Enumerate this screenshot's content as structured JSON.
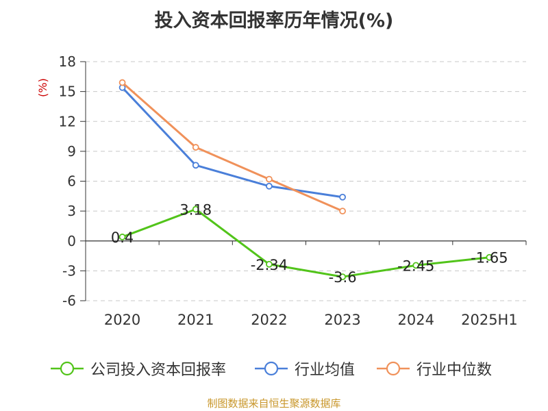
{
  "title": "投入资本回报率历年情况(%)",
  "source": "制图数据来自恒生聚源数据库",
  "chart_data": {
    "type": "line",
    "title": "投入资本回报率历年情况(%)",
    "ylabel": "(%)",
    "xlabel": "",
    "categories": [
      "2020",
      "2021",
      "2022",
      "2023",
      "2024",
      "2025H1"
    ],
    "ylim": [
      -6,
      18
    ],
    "yticks": [
      -6,
      -3,
      0,
      3,
      6,
      9,
      12,
      15,
      18
    ],
    "grid": true,
    "legend_position": "bottom",
    "series": [
      {
        "name": "公司投入资本回报率",
        "color": "#52c41a",
        "labels": true,
        "values": [
          0.4,
          3.18,
          -2.34,
          -3.6,
          -2.45,
          -1.65
        ]
      },
      {
        "name": "行业均值",
        "color": "#4a7fd9",
        "labels": false,
        "values": [
          15.4,
          7.6,
          5.5,
          4.4,
          null,
          null
        ]
      },
      {
        "name": "行业中位数",
        "color": "#f0915a",
        "labels": false,
        "values": [
          15.9,
          9.4,
          6.2,
          3.0,
          null,
          null
        ]
      }
    ]
  }
}
